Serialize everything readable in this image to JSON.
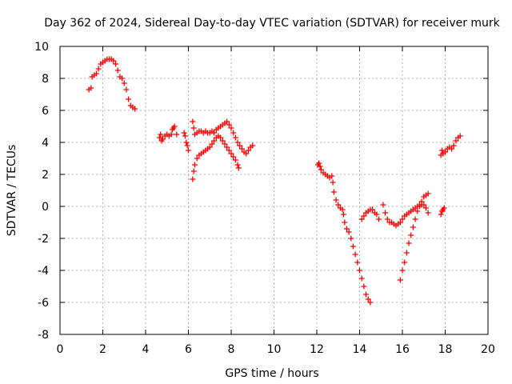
{
  "chart_data": {
    "type": "scatter",
    "title": "Day 362 of 2024, Sidereal Day-to-day VTEC variation (SDTVAR) for receiver murk",
    "xlabel": "GPS time / hours",
    "ylabel": "SDTVAR / TECUs",
    "xlim": [
      0,
      20
    ],
    "ylim": [
      -8,
      10
    ],
    "xticks": [
      "0",
      "2",
      "4",
      "6",
      "8",
      "10",
      "12",
      "14",
      "16",
      "18",
      "20"
    ],
    "yticks": [
      "-8",
      "-6",
      "-4",
      "-2",
      "0",
      "2",
      "4",
      "6",
      "8",
      "10"
    ],
    "grid": true,
    "marker": "+",
    "color": "#ff0000",
    "series": [
      {
        "points": [
          [
            1.35,
            7.3
          ],
          [
            1.45,
            7.4
          ],
          [
            1.5,
            8.1
          ],
          [
            1.6,
            8.2
          ],
          [
            1.7,
            8.3
          ],
          [
            1.8,
            8.6
          ],
          [
            1.9,
            8.9
          ],
          [
            2.0,
            9.0
          ],
          [
            2.1,
            9.1
          ],
          [
            2.2,
            9.2
          ],
          [
            2.3,
            9.2
          ],
          [
            2.4,
            9.2
          ],
          [
            2.5,
            9.1
          ],
          [
            2.6,
            8.9
          ],
          [
            2.7,
            8.5
          ],
          [
            2.8,
            8.1
          ],
          [
            2.9,
            8.0
          ],
          [
            3.0,
            7.7
          ],
          [
            3.1,
            7.3
          ],
          [
            3.2,
            6.7
          ],
          [
            3.3,
            6.3
          ],
          [
            3.4,
            6.2
          ],
          [
            3.5,
            6.1
          ],
          [
            4.65,
            4.3
          ],
          [
            4.7,
            4.5
          ],
          [
            4.75,
            4.1
          ],
          [
            4.8,
            4.2
          ],
          [
            4.9,
            4.4
          ],
          [
            5.0,
            4.5
          ],
          [
            5.1,
            4.4
          ],
          [
            5.2,
            4.5
          ],
          [
            5.25,
            4.8
          ],
          [
            5.3,
            4.9
          ],
          [
            5.35,
            5.0
          ],
          [
            5.45,
            4.5
          ],
          [
            5.8,
            4.6
          ],
          [
            5.85,
            4.4
          ],
          [
            5.9,
            4.0
          ],
          [
            5.95,
            3.8
          ],
          [
            6.0,
            3.5
          ],
          [
            6.2,
            5.3
          ],
          [
            6.25,
            4.9
          ],
          [
            6.3,
            4.5
          ],
          [
            6.4,
            4.6
          ],
          [
            6.5,
            4.7
          ],
          [
            6.6,
            4.7
          ],
          [
            6.7,
            4.6
          ],
          [
            6.8,
            4.7
          ],
          [
            6.9,
            4.6
          ],
          [
            7.0,
            4.6
          ],
          [
            7.1,
            4.7
          ],
          [
            7.2,
            4.6
          ],
          [
            7.3,
            4.8
          ],
          [
            7.4,
            4.9
          ],
          [
            7.5,
            5.0
          ],
          [
            7.6,
            5.1
          ],
          [
            7.7,
            5.2
          ],
          [
            7.8,
            5.3
          ],
          [
            7.9,
            5.1
          ],
          [
            8.0,
            4.9
          ],
          [
            8.1,
            4.6
          ],
          [
            8.2,
            4.3
          ],
          [
            8.3,
            4.0
          ],
          [
            8.4,
            3.8
          ],
          [
            8.5,
            3.6
          ],
          [
            8.6,
            3.4
          ],
          [
            8.7,
            3.3
          ],
          [
            8.8,
            3.5
          ],
          [
            8.9,
            3.7
          ],
          [
            9.0,
            3.8
          ],
          [
            6.2,
            1.7
          ],
          [
            6.25,
            2.2
          ],
          [
            6.3,
            2.6
          ],
          [
            6.4,
            3.0
          ],
          [
            6.5,
            3.2
          ],
          [
            6.6,
            3.3
          ],
          [
            6.7,
            3.4
          ],
          [
            6.8,
            3.5
          ],
          [
            6.9,
            3.6
          ],
          [
            7.0,
            3.7
          ],
          [
            7.1,
            3.9
          ],
          [
            7.2,
            4.1
          ],
          [
            7.3,
            4.3
          ],
          [
            7.4,
            4.4
          ],
          [
            7.5,
            4.3
          ],
          [
            7.6,
            4.1
          ],
          [
            7.7,
            3.9
          ],
          [
            7.8,
            3.7
          ],
          [
            7.9,
            3.5
          ],
          [
            8.0,
            3.3
          ],
          [
            8.1,
            3.1
          ],
          [
            8.2,
            2.9
          ],
          [
            8.3,
            2.6
          ],
          [
            8.35,
            2.4
          ],
          [
            12.05,
            2.6
          ],
          [
            12.1,
            2.7
          ],
          [
            12.15,
            2.5
          ],
          [
            12.2,
            2.3
          ],
          [
            12.3,
            2.1
          ],
          [
            12.4,
            2.0
          ],
          [
            12.5,
            1.9
          ],
          [
            12.6,
            1.8
          ],
          [
            12.7,
            1.9
          ],
          [
            12.75,
            1.5
          ],
          [
            12.8,
            0.9
          ],
          [
            12.9,
            0.4
          ],
          [
            13.0,
            0.1
          ],
          [
            13.1,
            -0.1
          ],
          [
            13.2,
            -0.2
          ],
          [
            13.25,
            -0.5
          ],
          [
            13.3,
            -1.0
          ],
          [
            13.4,
            -1.4
          ],
          [
            13.5,
            -1.6
          ],
          [
            13.6,
            -2.0
          ],
          [
            13.7,
            -2.5
          ],
          [
            13.8,
            -3.0
          ],
          [
            13.9,
            -3.5
          ],
          [
            14.0,
            -4.0
          ],
          [
            14.1,
            -4.5
          ],
          [
            14.2,
            -5.0
          ],
          [
            14.3,
            -5.5
          ],
          [
            14.4,
            -5.8
          ],
          [
            14.5,
            -6.0
          ],
          [
            14.1,
            -0.8
          ],
          [
            14.2,
            -0.6
          ],
          [
            14.3,
            -0.4
          ],
          [
            14.4,
            -0.3
          ],
          [
            14.5,
            -0.2
          ],
          [
            14.6,
            -0.2
          ],
          [
            14.7,
            -0.4
          ],
          [
            14.8,
            -0.5
          ],
          [
            14.9,
            -0.8
          ],
          [
            15.1,
            0.1
          ],
          [
            15.2,
            -0.4
          ],
          [
            15.3,
            -0.8
          ],
          [
            15.4,
            -1.0
          ],
          [
            15.5,
            -1.0
          ],
          [
            15.6,
            -1.1
          ],
          [
            15.7,
            -1.2
          ],
          [
            15.8,
            -1.1
          ],
          [
            15.9,
            -1.0
          ],
          [
            16.0,
            -0.8
          ],
          [
            16.1,
            -0.6
          ],
          [
            16.2,
            -0.5
          ],
          [
            16.3,
            -0.4
          ],
          [
            16.4,
            -0.3
          ],
          [
            16.5,
            -0.2
          ],
          [
            16.6,
            -0.1
          ],
          [
            16.7,
            0.0
          ],
          [
            16.8,
            0.0
          ],
          [
            16.9,
            0.1
          ],
          [
            17.0,
            0.1
          ],
          [
            17.1,
            -0.1
          ],
          [
            17.2,
            -0.4
          ],
          [
            15.9,
            -4.6
          ],
          [
            16.0,
            -4.0
          ],
          [
            16.1,
            -3.5
          ],
          [
            16.2,
            -2.9
          ],
          [
            16.3,
            -2.3
          ],
          [
            16.4,
            -1.8
          ],
          [
            16.5,
            -1.3
          ],
          [
            16.6,
            -0.8
          ],
          [
            16.7,
            -0.3
          ],
          [
            16.8,
            0.1
          ],
          [
            16.9,
            0.3
          ],
          [
            17.0,
            0.6
          ],
          [
            17.1,
            0.7
          ],
          [
            17.2,
            0.8
          ],
          [
            17.8,
            -0.5
          ],
          [
            17.85,
            -0.3
          ],
          [
            17.9,
            -0.2
          ],
          [
            17.95,
            -0.1
          ],
          [
            17.8,
            3.2
          ],
          [
            17.85,
            3.5
          ],
          [
            17.9,
            3.3
          ],
          [
            18.0,
            3.4
          ],
          [
            18.1,
            3.6
          ],
          [
            18.2,
            3.7
          ],
          [
            18.3,
            3.6
          ],
          [
            18.4,
            3.8
          ],
          [
            18.5,
            4.1
          ],
          [
            18.6,
            4.3
          ],
          [
            18.7,
            4.4
          ]
        ]
      }
    ]
  }
}
